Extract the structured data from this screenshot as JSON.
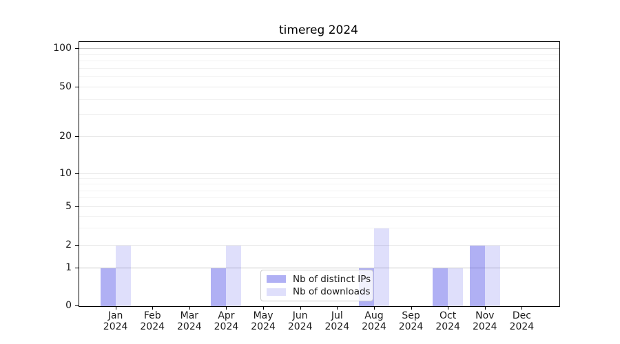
{
  "chart_data": {
    "type": "bar",
    "title": "timereg 2024",
    "categories": [
      {
        "month": "Jan",
        "year": "2024"
      },
      {
        "month": "Feb",
        "year": "2024"
      },
      {
        "month": "Mar",
        "year": "2024"
      },
      {
        "month": "Apr",
        "year": "2024"
      },
      {
        "month": "May",
        "year": "2024"
      },
      {
        "month": "Jun",
        "year": "2024"
      },
      {
        "month": "Jul",
        "year": "2024"
      },
      {
        "month": "Aug",
        "year": "2024"
      },
      {
        "month": "Sep",
        "year": "2024"
      },
      {
        "month": "Oct",
        "year": "2024"
      },
      {
        "month": "Nov",
        "year": "2024"
      },
      {
        "month": "Dec",
        "year": "2024"
      }
    ],
    "series": [
      {
        "name": "Nb of distinct IPs",
        "color": "#2828e1",
        "alpha": 0.37,
        "values": [
          1,
          0,
          0,
          1,
          0,
          0,
          0,
          1,
          0,
          1,
          2,
          0
        ]
      },
      {
        "name": "Nb of downloads",
        "color": "#2828e1",
        "alpha": 0.15,
        "values": [
          2,
          0,
          0,
          2,
          0,
          0,
          0,
          3,
          0,
          1,
          2,
          0
        ]
      }
    ],
    "yticks": [
      0,
      1,
      2,
      5,
      10,
      20,
      50,
      100
    ],
    "minor_yticks": [
      3,
      4,
      6,
      7,
      8,
      9,
      30,
      40,
      60,
      70,
      80,
      90
    ],
    "yscale": "symlog",
    "ylim": [
      0,
      110
    ],
    "xlabel": "",
    "ylabel": "",
    "grid": true,
    "legend_position": "lower center",
    "grid_major_strong_color": "#c6c6c6",
    "grid_major_color": "#e8e8e8",
    "grid_minor_color": "#f2f2f2"
  }
}
